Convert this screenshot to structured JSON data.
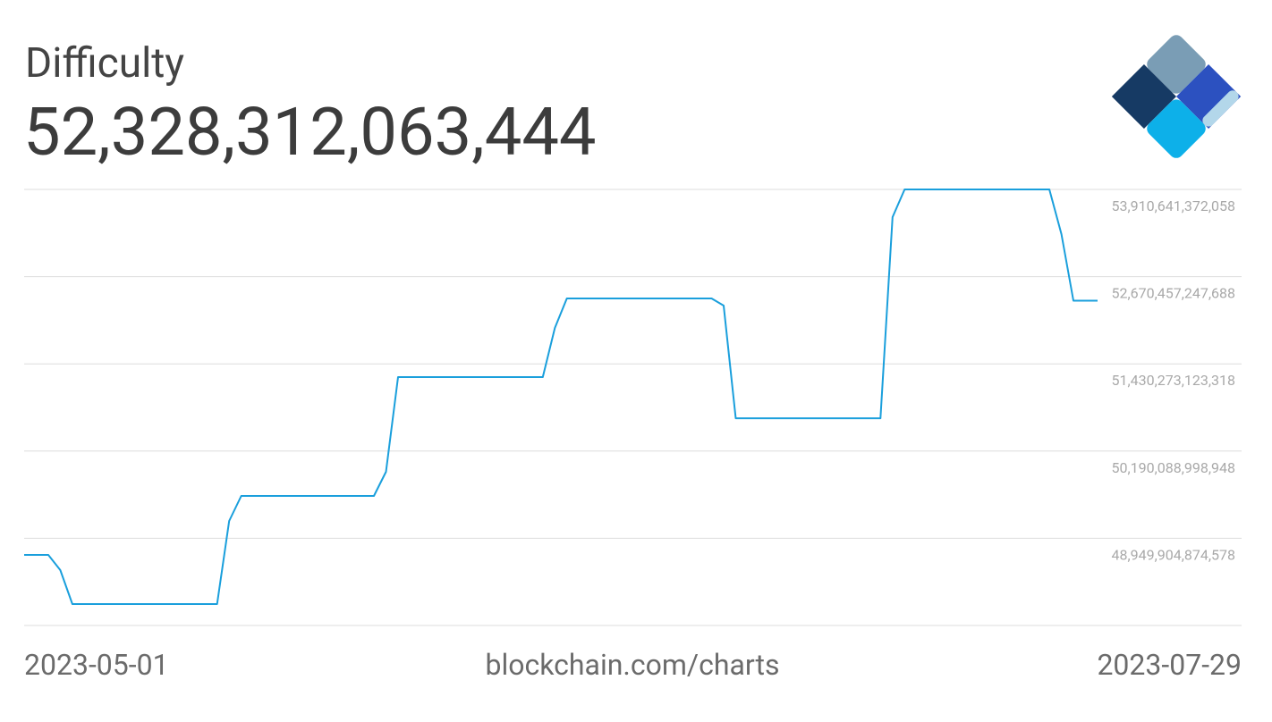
{
  "chart_data": {
    "type": "line",
    "title": "Difficulty",
    "subtitle": "52,328,312,063,444",
    "source": "blockchain.com/charts",
    "color": "#1a9fdc",
    "x": [
      "2023-05-01",
      "2023-05-03",
      "2023-05-04",
      "2023-05-05",
      "2023-05-17",
      "2023-05-18",
      "2023-05-19",
      "2023-05-30",
      "2023-05-31",
      "2023-06-01",
      "2023-06-13",
      "2023-06-14",
      "2023-06-15",
      "2023-06-27",
      "2023-06-28",
      "2023-06-29",
      "2023-07-11",
      "2023-07-12",
      "2023-07-13",
      "2023-07-25",
      "2023-07-26",
      "2023-07-27",
      "2023-07-29"
    ],
    "values": [
      48713000000000,
      48713000000000,
      48497000000000,
      48015000000000,
      48015000000000,
      49196000000000,
      49552000000000,
      49552000000000,
      49895000000000,
      51242000000000,
      51242000000000,
      51941000000000,
      52361000000000,
      52361000000000,
      52259000000000,
      50657000000000,
      50657000000000,
      53517000000000,
      53910641372058,
      53910641372058,
      53275000000000,
      52328312063444,
      52328312063444
    ],
    "xlim": [
      "2023-05-01",
      "2023-07-29"
    ],
    "ylim": [
      47709720750208,
      53910641372058
    ],
    "yticks": [
      {
        "value": 53910641372058,
        "label": "53,910,641,372,058"
      },
      {
        "value": 52670457247688,
        "label": "52,670,457,247,688"
      },
      {
        "value": 51430273123318,
        "label": "51,430,273,123,318"
      },
      {
        "value": 50190088998948,
        "label": "50,190,088,998,948"
      },
      {
        "value": 48949904874578,
        "label": "48,949,904,874,578"
      }
    ],
    "grid": true
  }
}
